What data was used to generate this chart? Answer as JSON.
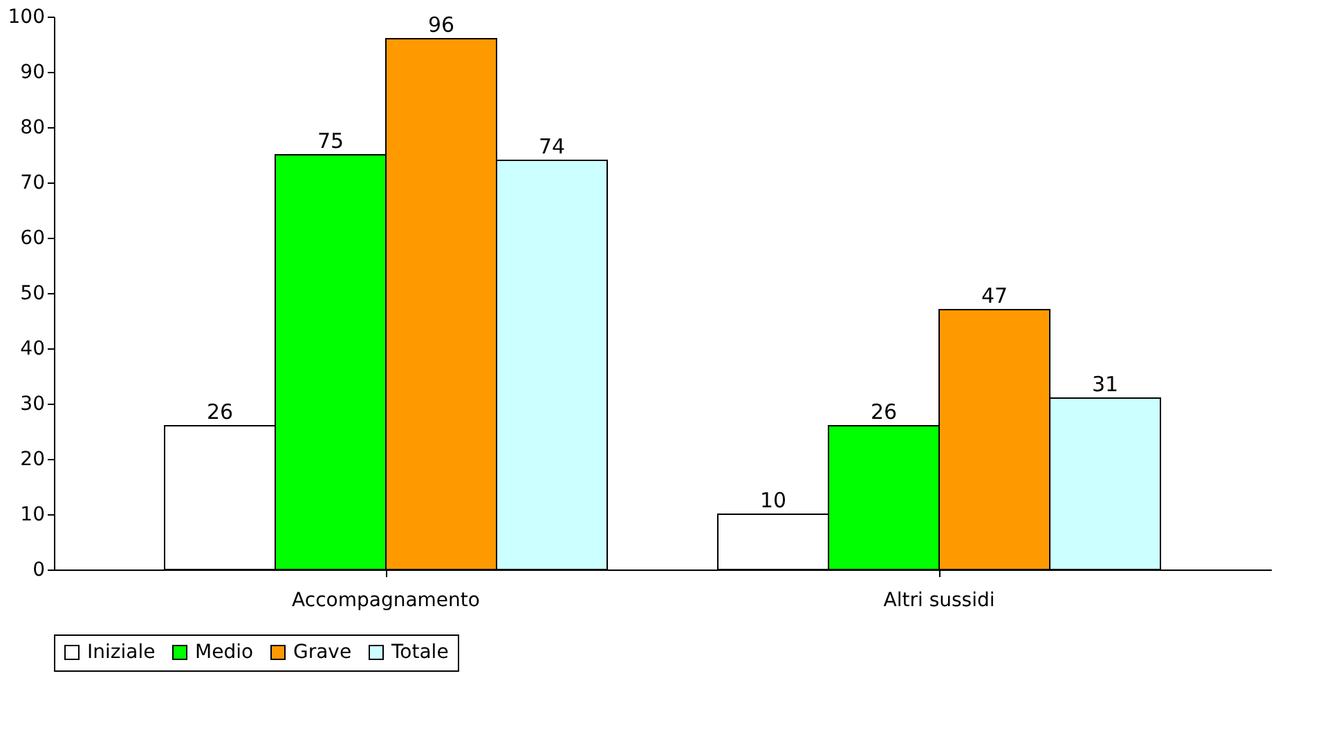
{
  "chart_data": {
    "type": "bar",
    "categories": [
      "Accompagnamento",
      "Altri sussidi"
    ],
    "series": [
      {
        "name": "Iniziale",
        "color": "#ffffff",
        "values": [
          26,
          10
        ]
      },
      {
        "name": "Medio",
        "color": "#00ff00",
        "values": [
          75,
          26
        ]
      },
      {
        "name": "Grave",
        "color": "#ff9900",
        "values": [
          96,
          47
        ]
      },
      {
        "name": "Totale",
        "color": "#ccffff",
        "values": [
          74,
          31
        ]
      }
    ],
    "ylim": [
      0,
      100
    ],
    "yticks": [
      0,
      10,
      20,
      30,
      40,
      50,
      60,
      70,
      80,
      90,
      100
    ],
    "grid": false,
    "legend": "bottom",
    "data_labels": true
  }
}
